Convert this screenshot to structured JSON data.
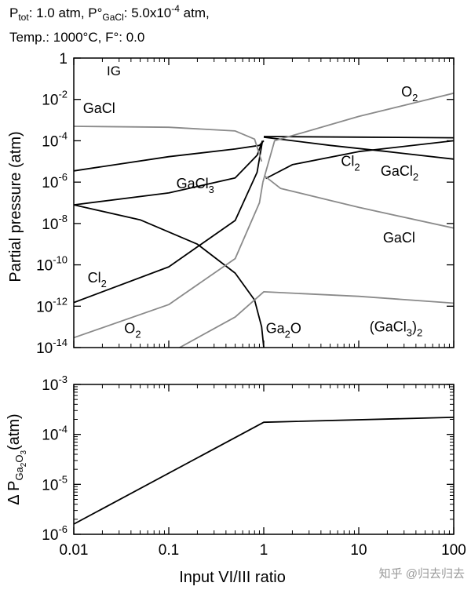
{
  "header": {
    "line1": {
      "p_tot_label": "P",
      "p_tot_sub": "tot",
      "p_tot_value": ": 1.0 atm, ",
      "p_gacl_label": "P°",
      "p_gacl_sub": "GaCl",
      "p_gacl_value": ": 5.0x10",
      "p_gacl_exp": "-4",
      "p_gacl_unit": " atm,"
    },
    "line2": "Temp.: 1000°C, F°: 0.0"
  },
  "watermark": "知乎 @归去归去",
  "colors": {
    "black_series": "#000000",
    "gray_series": "#8a8a8a",
    "axis": "#000000"
  },
  "chart_data": [
    {
      "type": "line",
      "panel": "top",
      "xscale": "log",
      "yscale": "log",
      "xlim": [
        0.01,
        100
      ],
      "ylim": [
        1e-14,
        1
      ],
      "ylabel": "Partial pressure (atm)",
      "panel_label": "IG",
      "xticks": [
        0.01,
        0.1,
        1,
        10,
        100
      ],
      "yticks": [
        {
          "value": 1,
          "base": "1",
          "exp": ""
        },
        {
          "value": 0.01,
          "base": "10",
          "exp": "-2"
        },
        {
          "value": 0.0001,
          "base": "10",
          "exp": "-4"
        },
        {
          "value": 1e-06,
          "base": "10",
          "exp": "-6"
        },
        {
          "value": 1e-08,
          "base": "10",
          "exp": "-8"
        },
        {
          "value": 1e-10,
          "base": "10",
          "exp": "-10"
        },
        {
          "value": 1e-12,
          "base": "10",
          "exp": "-12"
        },
        {
          "value": 1e-14,
          "base": "10",
          "exp": "-14"
        }
      ],
      "series": [
        {
          "id": "gacl3",
          "color": "#000000",
          "x": [
            0.01,
            0.1,
            0.5,
            0.9,
            1.0
          ],
          "y": [
            3.5e-06,
            1.7e-05,
            4e-05,
            6e-05,
            0.0001
          ]
        },
        {
          "id": "ga2o",
          "color": "#000000",
          "x": [
            0.01,
            0.05,
            0.2,
            0.5,
            0.8,
            0.95,
            1.0
          ],
          "y": [
            8e-08,
            1.5e-08,
            1e-09,
            4e-11,
            2e-12,
            1e-13,
            1e-14
          ]
        },
        {
          "id": "cl2_left",
          "color": "#000000",
          "x": [
            0.01,
            0.1,
            0.5,
            0.85,
            0.97
          ],
          "y": [
            1.5e-12,
            8e-11,
            1.4e-08,
            3e-06,
            0.0001
          ]
        },
        {
          "id": "top_right",
          "color": "#000000",
          "x": [
            1.0,
            10,
            100
          ],
          "y": [
            0.00016,
            0.00015,
            0.00014
          ]
        },
        {
          "id": "gacl2_right",
          "color": "#000000",
          "x": [
            1.0,
            5,
            20,
            100
          ],
          "y": [
            0.00015,
            6e-05,
            3e-05,
            1.3e-05
          ]
        },
        {
          "id": "gacl2_left",
          "color": "#000000",
          "x": [
            0.01,
            0.1,
            0.5,
            0.85,
            0.97
          ],
          "y": [
            8e-08,
            3e-07,
            1.6e-06,
            2e-05,
            0.0001
          ]
        },
        {
          "id": "cl2_right",
          "color": "#000000",
          "x": [
            1.05,
            2,
            10,
            100
          ],
          "y": [
            1.5e-06,
            7e-06,
            3e-05,
            0.0001
          ]
        },
        {
          "id": "gacl_left",
          "color": "#8a8a8a",
          "x": [
            0.01,
            0.1,
            0.5,
            0.8,
            0.95
          ],
          "y": [
            0.0005,
            0.00045,
            0.0003,
            0.00012,
            1e-05
          ]
        },
        {
          "id": "gacl_right",
          "color": "#8a8a8a",
          "x": [
            1.02,
            1.5,
            10,
            100
          ],
          "y": [
            2e-06,
            5e-07,
            6e-08,
            6e-09
          ]
        },
        {
          "id": "o2_right",
          "color": "#8a8a8a",
          "x": [
            0.98,
            1.3,
            10,
            100
          ],
          "y": [
            1e-06,
            0.0001,
            0.0015,
            0.02
          ]
        },
        {
          "id": "o2_left",
          "color": "#8a8a8a",
          "x": [
            0.01,
            0.1,
            0.5,
            0.9,
            0.98
          ],
          "y": [
            3e-14,
            1.2e-12,
            2e-10,
            1e-07,
            1e-06
          ]
        },
        {
          "id": "gacl3_2",
          "color": "#8a8a8a",
          "x": [
            0.13,
            0.5,
            1.0,
            10,
            100
          ],
          "y": [
            1e-14,
            3e-13,
            5e-12,
            3e-12,
            1.4e-12
          ]
        }
      ],
      "labels": [
        {
          "id": "label-gacl-left",
          "base": "GaCl",
          "sub": "",
          "tail": "",
          "x": 0.0125,
          "y": 0.0022
        },
        {
          "id": "label-gacl3",
          "base": "GaCl",
          "sub": "3",
          "tail": "",
          "x": 0.12,
          "y": 5e-07
        },
        {
          "id": "label-cl2-left",
          "base": "Cl",
          "sub": "2",
          "tail": "",
          "x": 0.014,
          "y": 1.4e-11
        },
        {
          "id": "label-o2-left",
          "base": "O",
          "sub": "2",
          "tail": "",
          "x": 0.034,
          "y": 5e-14
        },
        {
          "id": "label-ga2o",
          "base": "Ga",
          "sub": "2",
          "tail": "O",
          "x": 1.05,
          "y": 5e-14
        },
        {
          "id": "label-o2-right",
          "base": "O",
          "sub": "2",
          "tail": "",
          "x": 28,
          "y": 0.014
        },
        {
          "id": "label-cl2-right",
          "base": "Cl",
          "sub": "2",
          "tail": "",
          "x": 6.5,
          "y": 6e-06
        },
        {
          "id": "label-gacl2",
          "base": "GaCl",
          "sub": "2",
          "tail": "",
          "x": 17,
          "y": 2e-06
        },
        {
          "id": "label-gacl-right",
          "base": "GaCl",
          "sub": "",
          "tail": "",
          "x": 18,
          "y": 1.2e-09
        },
        {
          "id": "label-gacl3-2",
          "base": "(GaCl",
          "sub": "3",
          "tail": ")",
          "sub2": "2",
          "x": 13,
          "y": 6e-14
        }
      ]
    },
    {
      "type": "line",
      "panel": "bottom",
      "xscale": "log",
      "yscale": "log",
      "xlim": [
        0.01,
        100
      ],
      "ylim": [
        1e-06,
        0.001
      ],
      "xlabel": "Input VI/III ratio",
      "ylabel": {
        "prefix": "Δ P",
        "sub_base": "Ga",
        "sub_2": "2",
        "sub_o": "O",
        "sub_3": "3",
        "suffix": "(atm)"
      },
      "xticks": [
        {
          "value": 0.01,
          "label": "0.01"
        },
        {
          "value": 0.1,
          "label": "0.1"
        },
        {
          "value": 1,
          "label": "1"
        },
        {
          "value": 10,
          "label": "10"
        },
        {
          "value": 100,
          "label": "100"
        }
      ],
      "yticks": [
        {
          "value": 0.001,
          "base": "10",
          "exp": "-3"
        },
        {
          "value": 0.0001,
          "base": "10",
          "exp": "-4"
        },
        {
          "value": 1e-05,
          "base": "10",
          "exp": "-5"
        },
        {
          "value": 1e-06,
          "base": "10",
          "exp": "-6"
        }
      ],
      "series": [
        {
          "id": "delta_p_ga2o3",
          "color": "#000000",
          "x": [
            0.01,
            1.0,
            100
          ],
          "y": [
            1.6e-06,
            0.000175,
            0.00022
          ]
        }
      ]
    }
  ]
}
